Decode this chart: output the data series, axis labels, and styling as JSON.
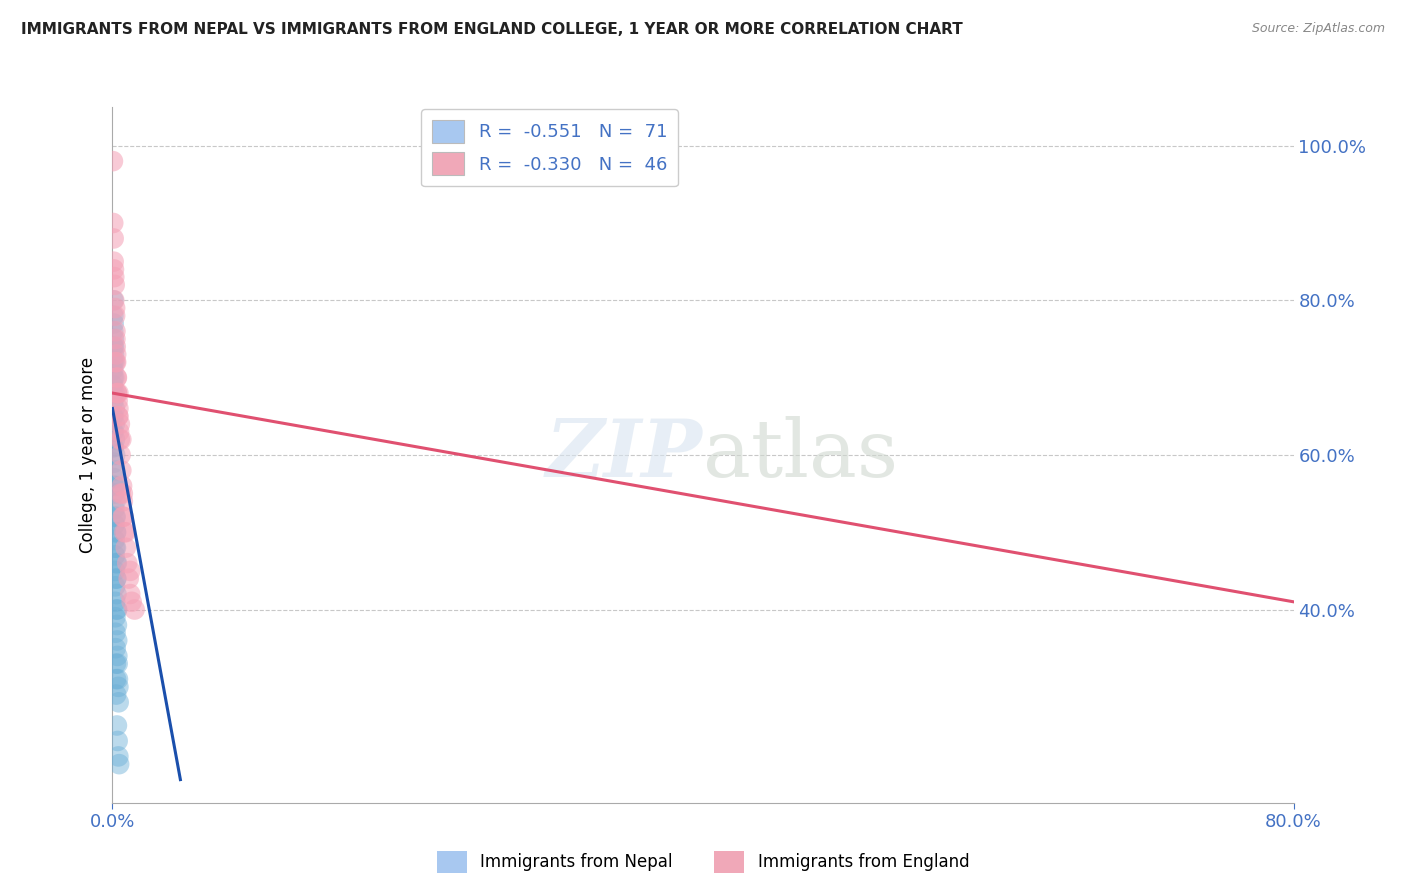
{
  "title": "IMMIGRANTS FROM NEPAL VS IMMIGRANTS FROM ENGLAND COLLEGE, 1 YEAR OR MORE CORRELATION CHART",
  "source": "Source: ZipAtlas.com",
  "ylabel": "College, 1 year or more",
  "watermark": "ZIPatlas",
  "legend_entries": [
    {
      "label": "R =  -0.551   N =  71",
      "color": "#a8c8f0"
    },
    {
      "label": "R =  -0.330   N =  46",
      "color": "#f0a8b8"
    }
  ],
  "legend_bottom": [
    {
      "label": "Immigrants from Nepal",
      "color": "#a8c8f0"
    },
    {
      "label": "Immigrants from England",
      "color": "#f0a8b8"
    }
  ],
  "nepal_color": "#6aaed6",
  "england_color": "#f4a0b5",
  "nepal_line_color": "#1a4fac",
  "england_line_color": "#e05070",
  "title_color": "#222222",
  "axis_label_color": "#4472c4",
  "right_axis_color": "#4472c4",
  "grid_color": "#c8c8c8",
  "nepal_scatter_x": [
    0.0002,
    0.0003,
    0.0004,
    0.0005,
    0.0006,
    0.0007,
    0.0008,
    0.0009,
    0.001,
    0.0011,
    0.0012,
    0.0013,
    0.0014,
    0.0015,
    0.0016,
    0.0017,
    0.0018,
    0.0019,
    0.002,
    0.0021,
    0.0022,
    0.0023,
    0.0024,
    0.0025,
    0.0026,
    0.0027,
    0.0028,
    0.003,
    0.0032,
    0.0033,
    0.0035,
    0.0037,
    0.004,
    0.0042,
    0.0001,
    0.0002,
    0.0003,
    0.0004,
    0.0005,
    0.0006,
    0.0007,
    0.0008,
    0.0009,
    0.001,
    0.0011,
    0.0012,
    0.0013,
    0.0014,
    0.0015,
    0.0016,
    0.0017,
    0.0018,
    0.0019,
    0.002,
    0.0021,
    0.0022,
    0.0023,
    0.0024,
    0.0025,
    0.003,
    0.0035,
    0.004,
    0.0045,
    0.0018,
    0.0025,
    0.0032,
    0.0018,
    0.0025,
    0.003,
    0.001,
    0.0005
  ],
  "nepal_scatter_y": [
    0.68,
    0.72,
    0.74,
    0.76,
    0.78,
    0.8,
    0.77,
    0.75,
    0.73,
    0.74,
    0.72,
    0.7,
    0.68,
    0.66,
    0.64,
    0.62,
    0.6,
    0.58,
    0.56,
    0.54,
    0.52,
    0.5,
    0.48,
    0.46,
    0.44,
    0.42,
    0.4,
    0.38,
    0.36,
    0.34,
    0.33,
    0.31,
    0.3,
    0.28,
    0.65,
    0.63,
    0.61,
    0.69,
    0.71,
    0.67,
    0.65,
    0.63,
    0.61,
    0.59,
    0.57,
    0.55,
    0.53,
    0.51,
    0.49,
    0.47,
    0.45,
    0.43,
    0.41,
    0.39,
    0.37,
    0.35,
    0.33,
    0.31,
    0.29,
    0.25,
    0.23,
    0.21,
    0.2,
    0.48,
    0.44,
    0.4,
    0.52,
    0.5,
    0.46,
    0.56,
    0.7
  ],
  "england_scatter_x": [
    0.0003,
    0.0005,
    0.0008,
    0.001,
    0.0012,
    0.0015,
    0.0018,
    0.002,
    0.0022,
    0.0025,
    0.0028,
    0.003,
    0.0035,
    0.0038,
    0.004,
    0.0045,
    0.005,
    0.0055,
    0.006,
    0.0065,
    0.007,
    0.0075,
    0.008,
    0.009,
    0.01,
    0.011,
    0.012,
    0.013,
    0.015,
    0.003,
    0.004,
    0.005,
    0.006,
    0.002,
    0.0025,
    0.0008,
    0.0012,
    0.0018,
    0.003,
    0.004,
    0.0055,
    0.007,
    0.009,
    0.012,
    0.002,
    0.007
  ],
  "england_scatter_y": [
    0.98,
    0.9,
    0.88,
    0.84,
    0.8,
    0.82,
    0.78,
    0.76,
    0.74,
    0.72,
    0.7,
    0.68,
    0.67,
    0.65,
    0.65,
    0.63,
    0.62,
    0.6,
    0.58,
    0.56,
    0.54,
    0.52,
    0.5,
    0.48,
    0.46,
    0.44,
    0.42,
    0.41,
    0.4,
    0.68,
    0.66,
    0.64,
    0.62,
    0.75,
    0.73,
    0.85,
    0.83,
    0.79,
    0.7,
    0.68,
    0.55,
    0.52,
    0.5,
    0.45,
    0.72,
    0.55
  ],
  "xmin": 0.0,
  "xmax": 0.8,
  "ymin": 0.15,
  "ymax": 1.05,
  "yticks_right": [
    0.4,
    0.6,
    0.8,
    1.0
  ],
  "ytick_labels_right": [
    "40.0%",
    "60.0%",
    "80.0%",
    "100.0%"
  ],
  "nepal_line_x0": 0.0,
  "nepal_line_y0": 0.66,
  "nepal_line_x1": 0.046,
  "nepal_line_y1": 0.18,
  "england_line_x0": 0.0,
  "england_line_y0": 0.68,
  "england_line_x1": 0.8,
  "england_line_y1": 0.41
}
